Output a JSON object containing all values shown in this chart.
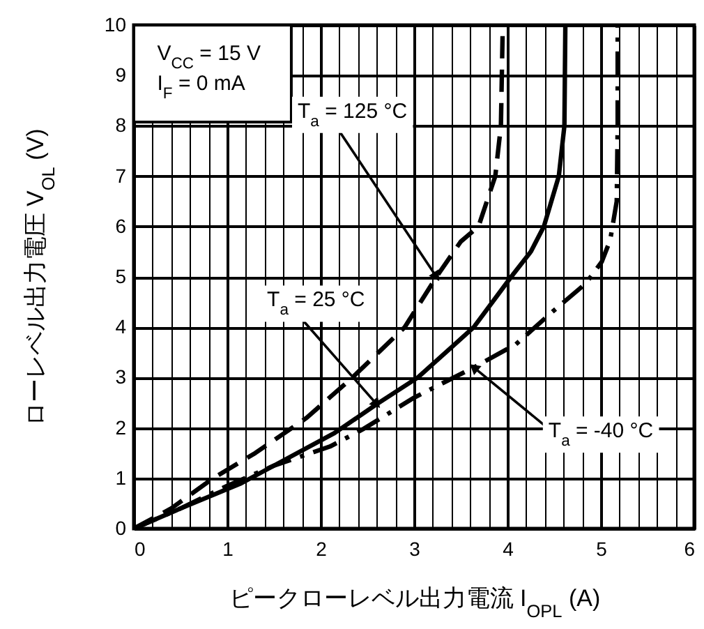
{
  "chart_data": {
    "type": "line",
    "xlabel": "ピークローレベル出力電流  I$_{OPL}$  (A)",
    "ylabel": "ローレベル出力電圧  V$_{OL}$  (V)",
    "xlim": [
      0,
      6
    ],
    "ylim": [
      0,
      10
    ],
    "xticks": [
      0,
      {
        "value": 0.2,
        "label": null
      },
      {
        "value": 0.4,
        "label": null
      },
      {
        "value": 0.6,
        "label": null
      },
      {
        "value": 0.8,
        "label": null
      },
      1,
      {
        "value": 1.2,
        "label": null
      },
      {
        "value": 1.4,
        "label": null
      },
      {
        "value": 1.6,
        "label": null
      },
      {
        "value": 1.8,
        "label": null
      },
      2,
      {
        "value": 2.2,
        "label": null
      },
      {
        "value": 2.4,
        "label": null
      },
      {
        "value": 2.6,
        "label": null
      },
      {
        "value": 2.8,
        "label": null
      },
      3,
      {
        "value": 3.2,
        "label": null
      },
      {
        "value": 3.4,
        "label": null
      },
      {
        "value": 3.6,
        "label": null
      },
      {
        "value": 3.8,
        "label": null
      },
      4,
      {
        "value": 4.2,
        "label": null
      },
      {
        "value": 4.4,
        "label": null
      },
      {
        "value": 4.6,
        "label": null
      },
      {
        "value": 4.8,
        "label": null
      },
      5,
      {
        "value": 5.2,
        "label": null
      },
      {
        "value": 5.4,
        "label": null
      },
      {
        "value": 5.6,
        "label": null
      },
      {
        "value": 5.8,
        "label": null
      },
      6
    ],
    "yticks": [
      0,
      1,
      2,
      3,
      4,
      5,
      6,
      7,
      8,
      9,
      10
    ],
    "grid": true,
    "marker": "none",
    "series": [
      {
        "color": "#000000",
        "line_style": "dashed",
        "x": [
          0,
          0.4,
          0.85,
          1.3,
          1.85,
          2.34,
          2.9,
          3.24,
          3.5,
          3.69,
          3.87,
          3.93,
          3.95
        ],
        "values": [
          0,
          0.4,
          1,
          1.5,
          2.2,
          3,
          4,
          5,
          5.7,
          6,
          7,
          8,
          10
        ]
      },
      {
        "color": "#000000",
        "line_style": "solid",
        "x": [
          0,
          0.5,
          1.15,
          1.6,
          2.15,
          2.6,
          3.04,
          3.4,
          3.64,
          4.04,
          4.25,
          4.39,
          4.55,
          4.61,
          4.62
        ],
        "values": [
          0,
          0.4,
          0.9,
          1.35,
          1.9,
          2.47,
          3,
          3.6,
          4,
          5,
          5.5,
          6,
          7,
          8,
          10
        ]
      },
      {
        "color": "#000000",
        "line_style": "dashdot",
        "x": [
          0,
          0.5,
          1,
          1.5,
          2.1,
          2.45,
          3,
          3.64,
          4.09,
          4.49,
          4.84,
          5.01,
          5.1,
          5.17,
          5.18,
          5.18
        ],
        "values": [
          0,
          0.4,
          0.85,
          1.25,
          1.63,
          1.97,
          2.6,
          3.2,
          3.66,
          4.32,
          4.87,
          5.3,
          5.73,
          6.5,
          8,
          10
        ]
      }
    ],
    "annotations": [
      "V$_{CC}$ = 15 V",
      "I$_{F}$ = 0 mA",
      {
        "text": "T$_{a}$ = 125 °C",
        "x": 3.24,
        "y": 5
      },
      {
        "text": "T$_{a}$ = 25 °C",
        "x": 2.6,
        "y": 2.47
      },
      {
        "text": "T$_{a}$ = -40 °C",
        "x": 3.64,
        "y": 3.2
      }
    ]
  }
}
